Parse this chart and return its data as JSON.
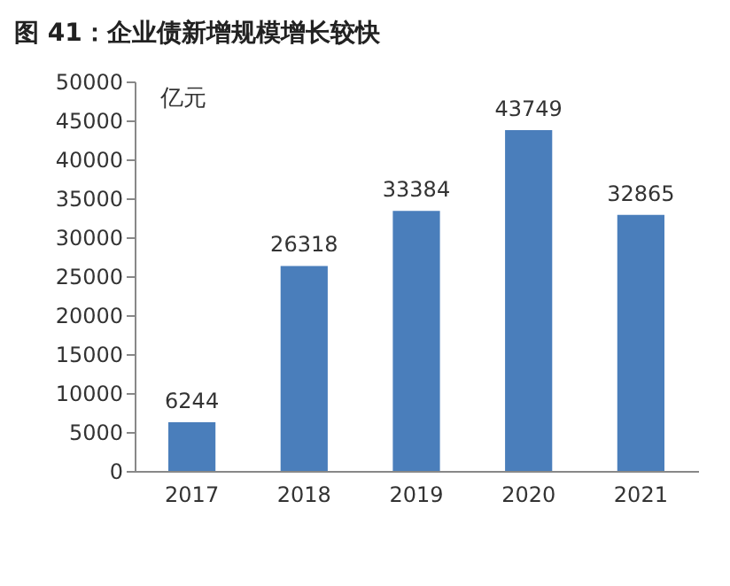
{
  "chart_data": {
    "type": "bar",
    "title": "图 41：企业债新增规模增长较快",
    "ylabel": "亿元",
    "categories": [
      "2017",
      "2018",
      "2019",
      "2020",
      "2021"
    ],
    "values": [
      6244,
      26318,
      33384,
      43749,
      32865
    ],
    "color": "#4a7ebb",
    "ylim": [
      0,
      50000
    ],
    "yticks": [
      0,
      5000,
      10000,
      15000,
      20000,
      25000,
      30000,
      35000,
      40000,
      45000,
      50000
    ],
    "data_labels": true
  }
}
